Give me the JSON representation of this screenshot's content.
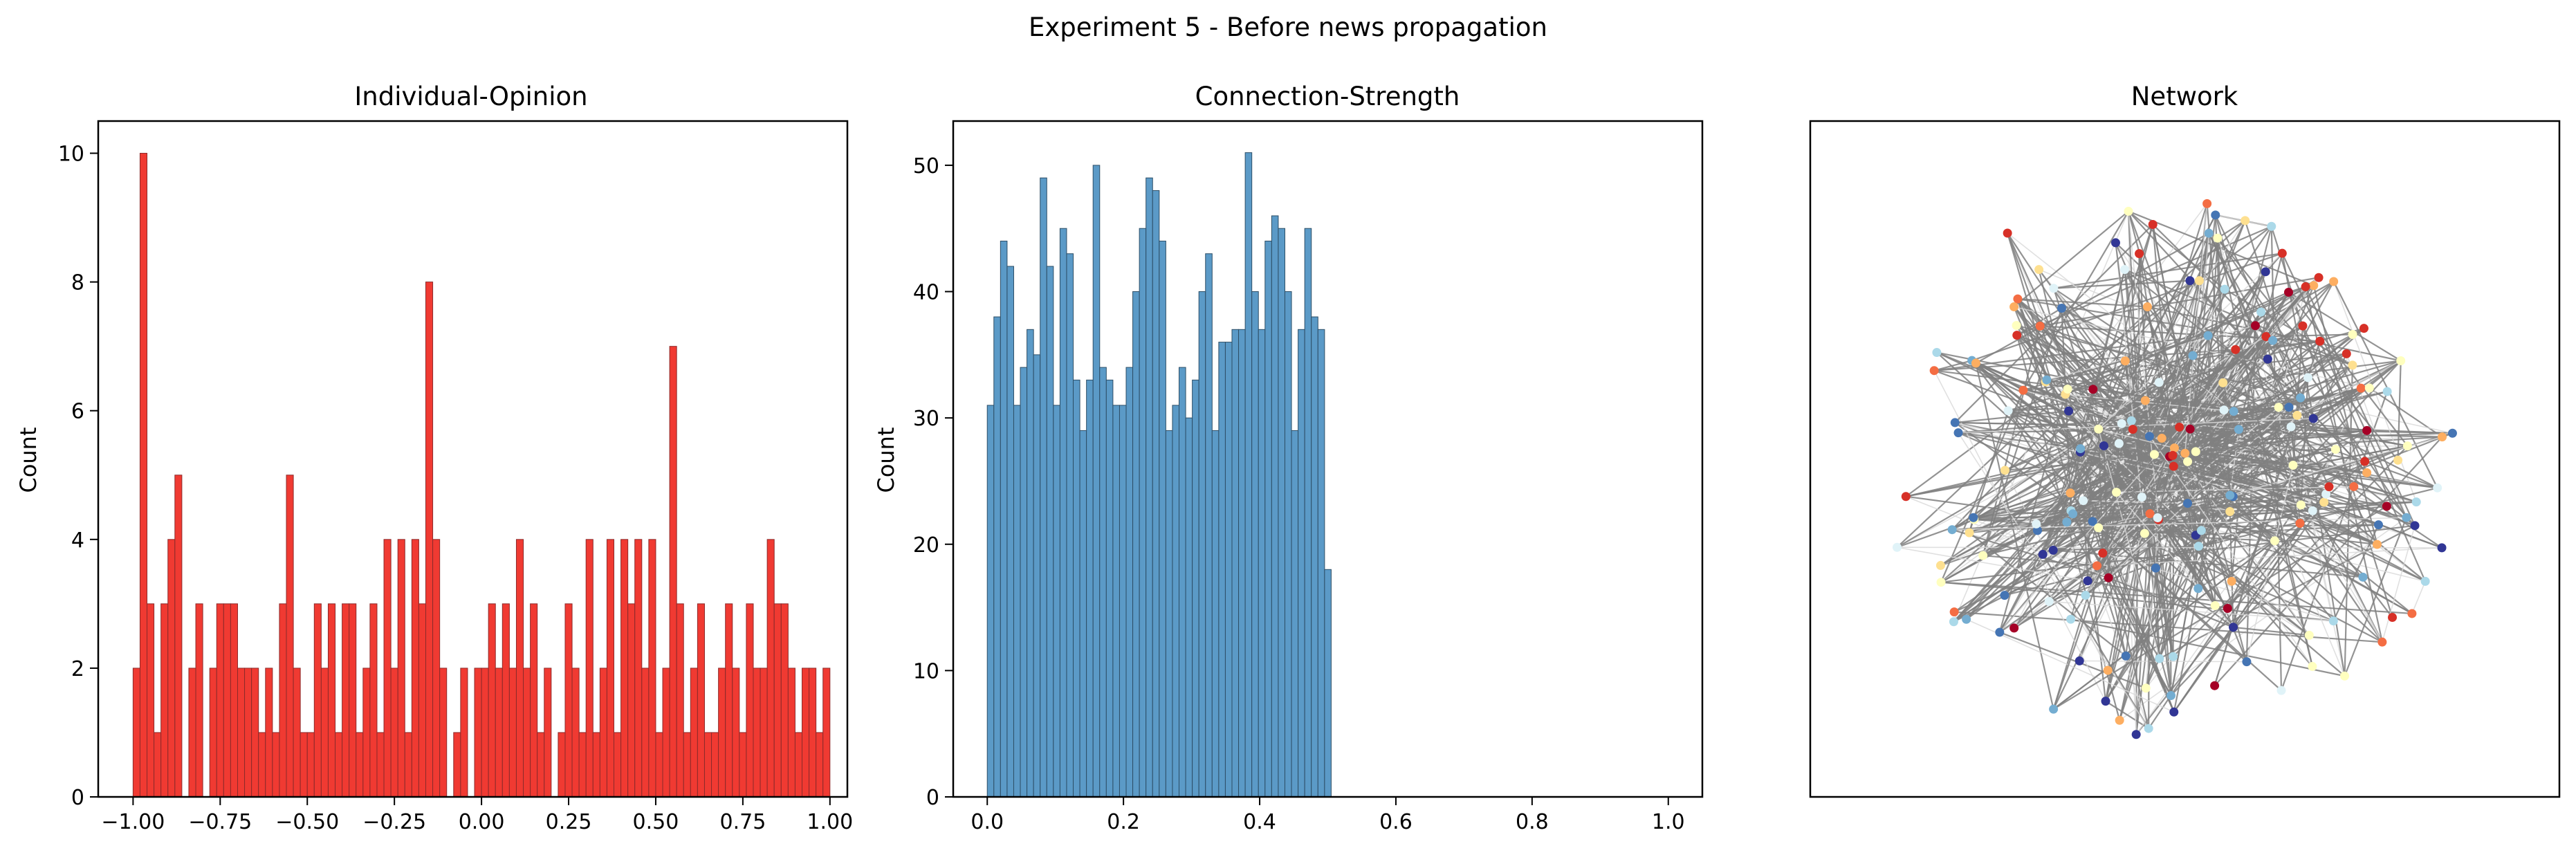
{
  "suptitle": "Experiment 5 - Before news propagation",
  "chart_data": [
    {
      "type": "bar",
      "title": "Individual-Opinion",
      "xlabel": "",
      "ylabel": "Count",
      "xlim": [
        -1.1,
        1.05
      ],
      "ylim": [
        0,
        10.5
      ],
      "xticks": [
        -1.0,
        -0.75,
        -0.5,
        -0.25,
        0.0,
        0.25,
        0.5,
        0.75,
        1.0
      ],
      "xtick_labels": [
        "−1.00",
        "−0.75",
        "−0.50",
        "−0.25",
        "0.00",
        "0.25",
        "0.50",
        "0.75",
        "1.00"
      ],
      "yticks": [
        0,
        2,
        4,
        6,
        8,
        10
      ],
      "ytick_labels": [
        "0",
        "2",
        "4",
        "6",
        "8",
        "10"
      ],
      "bin_range": [
        -1.0,
        1.0
      ],
      "bar_color": "#f03a32",
      "edge_color": "#8c2a2a",
      "values": [
        2,
        10,
        3,
        1,
        3,
        4,
        5,
        0,
        2,
        3,
        0,
        2,
        3,
        3,
        3,
        2,
        2,
        2,
        1,
        2,
        1,
        3,
        5,
        2,
        1,
        1,
        3,
        2,
        3,
        1,
        3,
        3,
        1,
        2,
        3,
        1,
        4,
        2,
        4,
        1,
        4,
        3,
        8,
        4,
        2,
        0,
        1,
        2,
        0,
        2,
        2,
        3,
        2,
        3,
        2,
        4,
        2,
        3,
        1,
        2,
        0,
        1,
        3,
        2,
        1,
        4,
        1,
        2,
        4,
        1,
        4,
        3,
        4,
        2,
        4,
        1,
        2,
        7,
        3,
        1,
        2,
        3,
        1,
        1,
        2,
        3,
        2,
        1,
        3,
        2,
        2,
        4,
        3,
        3,
        2,
        1,
        2,
        2,
        1,
        2
      ]
    },
    {
      "type": "bar",
      "title": "Connection-Strength",
      "xlabel": "",
      "ylabel": "Count",
      "xlim": [
        -0.05,
        1.05
      ],
      "ylim": [
        0,
        53.5
      ],
      "xticks": [
        0.0,
        0.2,
        0.4,
        0.6,
        0.8,
        1.0
      ],
      "xtick_labels": [
        "0.0",
        "0.2",
        "0.4",
        "0.6",
        "0.8",
        "1.0"
      ],
      "yticks": [
        0,
        10,
        20,
        30,
        40,
        50
      ],
      "ytick_labels": [
        "0",
        "10",
        "20",
        "30",
        "40",
        "50"
      ],
      "bin_range": [
        0.0,
        0.505
      ],
      "bar_color": "#5b9ac7",
      "edge_color": "#2d4e66",
      "values": [
        31,
        38,
        44,
        42,
        31,
        34,
        37,
        35,
        49,
        42,
        31,
        45,
        43,
        33,
        29,
        33,
        50,
        34,
        33,
        31,
        31,
        34,
        40,
        45,
        49,
        48,
        44,
        29,
        31,
        34,
        30,
        33,
        40,
        43,
        29,
        36,
        36,
        37,
        37,
        51,
        40,
        37,
        44,
        46,
        45,
        40,
        29,
        37,
        45,
        38,
        37,
        18
      ]
    },
    {
      "type": "scatter",
      "title": "Network",
      "node_count": 200,
      "node_palette": [
        "#a50026",
        "#d73027",
        "#f46d43",
        "#fdae61",
        "#fee090",
        "#ffffbf",
        "#e0f3f8",
        "#abd9e9",
        "#74add1",
        "#4575b4",
        "#313695"
      ],
      "edge_color": "#808080"
    }
  ]
}
